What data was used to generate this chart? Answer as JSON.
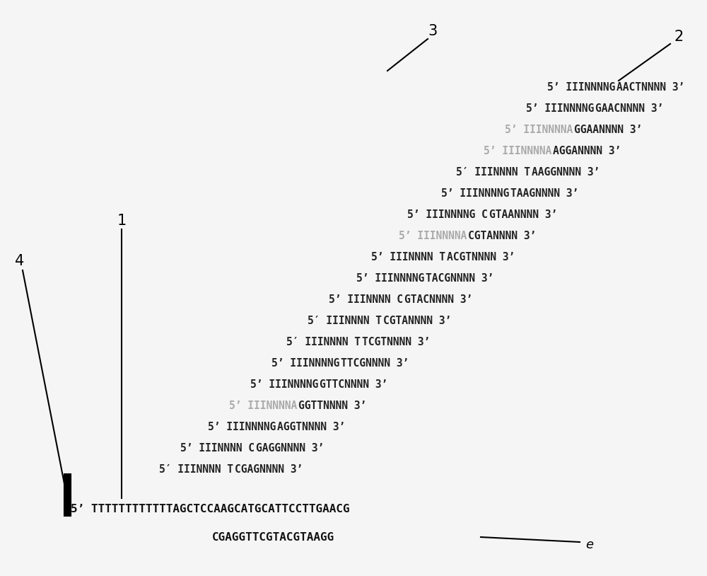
{
  "background_color": "#f5f5f5",
  "probe_rows": [
    {
      "left": "5’ IIINNNNG",
      "right": "AACTNNNN 3’",
      "left_gray": false
    },
    {
      "left": "5’ IIINNNNG",
      "right": "GAACNNNN 3’",
      "left_gray": false
    },
    {
      "left": "5’ IIINNNNA",
      "right": "GGAANNNN 3’",
      "left_gray": true
    },
    {
      "left": "5’ IIINNNNA",
      "right": "AGGANNNN 3’",
      "left_gray": true
    },
    {
      "left": "5′ IIINNNN T",
      "right": "AAGGNNNN 3’",
      "left_gray": false
    },
    {
      "left": "5’ IIINNNNG",
      "right": "TAAGNNNN 3’",
      "left_gray": false
    },
    {
      "left": "5’ IIINNNNG C",
      "right": "GTAANNNN 3’",
      "left_gray": false
    },
    {
      "left": "5’ IIINNNNA",
      "right": "CGTANNNN 3’",
      "left_gray": true
    },
    {
      "left": "5’ IIINNNN T",
      "right": "ACGTNNNN 3’",
      "left_gray": false
    },
    {
      "left": "5’ IIINNNNG",
      "right": "TACGNNNN 3’",
      "left_gray": false
    },
    {
      "left": "5’ IIINNNN C",
      "right": "GTACNNNN 3’",
      "left_gray": false
    },
    {
      "left": "5′ IIINNNN T",
      "right": "CGTANNNN 3’",
      "left_gray": false
    },
    {
      "left": "5′ IIINNNN T",
      "right": "TCGTNNNN 3’",
      "left_gray": false
    },
    {
      "left": "5’ IIINNNNG",
      "right": "TTCGNNNN 3’",
      "left_gray": false
    },
    {
      "left": "5’ IIINNNNG",
      "right": "GTTCNNNN 3’",
      "left_gray": false
    },
    {
      "left": "5’ IIINNNNA",
      "right": "GGTTNNNN 3’",
      "left_gray": true
    },
    {
      "left": "5’ IIINNNNG",
      "right": "AGGTNNNN 3’",
      "left_gray": false
    },
    {
      "left": "5’ IIINNNN C",
      "right": "GAGGNNNN 3’",
      "left_gray": false
    },
    {
      "left": "5′ IIINNNN T",
      "right": "CGAGNNNN 3’",
      "left_gray": false
    }
  ],
  "bottom_seq": "5’ TTTTTTTTTTTTAGCTCCAAGCATGCATTCCTTGAACG",
  "bottom_seq2": "CGAGGTTCGTACGTAAGG",
  "font_size_rows": 10.5,
  "font_size_bottom": 11.5,
  "font_size_labels": 15
}
